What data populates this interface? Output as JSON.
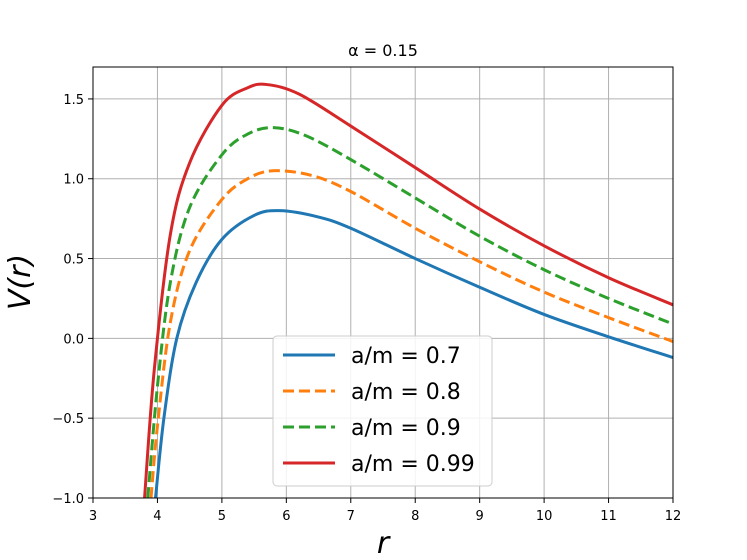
{
  "chart_data": {
    "type": "line",
    "title": "α = 0.15",
    "xlabel": "r",
    "ylabel": "V(r)",
    "xlim": [
      3,
      12
    ],
    "ylim": [
      -1.0,
      1.7
    ],
    "xticks": [
      "3",
      "4",
      "5",
      "6",
      "7",
      "8",
      "9",
      "10",
      "11",
      "12"
    ],
    "yticks": [
      "−1.0",
      "−0.5",
      "0.0",
      "0.5",
      "1.0",
      "1.5"
    ],
    "grid": true,
    "legend_position": "lower-center",
    "series": [
      {
        "name": "a/m = 0.7",
        "color": "#1f77b4",
        "style": "solid",
        "x": [
          3.97,
          4.1,
          4.3,
          4.6,
          5.0,
          5.5,
          5.9,
          6.5,
          7.0,
          8.0,
          9.0,
          10.0,
          11.0,
          12.0
        ],
        "y": [
          -1.0,
          -0.5,
          0.0,
          0.35,
          0.62,
          0.77,
          0.8,
          0.76,
          0.69,
          0.5,
          0.32,
          0.15,
          0.01,
          -0.12
        ]
      },
      {
        "name": "a/m = 0.8",
        "color": "#ff7f0e",
        "style": "dashed",
        "x": [
          3.9,
          4.0,
          4.2,
          4.5,
          5.0,
          5.4,
          5.8,
          6.4,
          7.0,
          8.0,
          9.0,
          10.0,
          11.0,
          12.0
        ],
        "y": [
          -1.0,
          -0.55,
          0.1,
          0.55,
          0.87,
          1.0,
          1.05,
          1.02,
          0.92,
          0.69,
          0.48,
          0.29,
          0.13,
          -0.02
        ]
      },
      {
        "name": "a/m = 0.9",
        "color": "#2ca02c",
        "style": "dashed",
        "x": [
          3.85,
          4.0,
          4.2,
          4.5,
          5.0,
          5.4,
          5.8,
          6.3,
          7.0,
          8.0,
          9.0,
          10.0,
          11.0,
          12.0
        ],
        "y": [
          -1.0,
          -0.3,
          0.35,
          0.82,
          1.15,
          1.28,
          1.32,
          1.27,
          1.12,
          0.88,
          0.64,
          0.43,
          0.25,
          0.09
        ]
      },
      {
        "name": "a/m = 0.99",
        "color": "#d62728",
        "style": "solid",
        "x": [
          3.8,
          3.95,
          4.2,
          4.5,
          5.0,
          5.4,
          5.7,
          6.2,
          7.0,
          8.0,
          9.0,
          10.0,
          11.0,
          12.0
        ],
        "y": [
          -1.0,
          -0.2,
          0.65,
          1.1,
          1.46,
          1.57,
          1.59,
          1.53,
          1.33,
          1.07,
          0.81,
          0.58,
          0.38,
          0.21
        ]
      }
    ]
  }
}
